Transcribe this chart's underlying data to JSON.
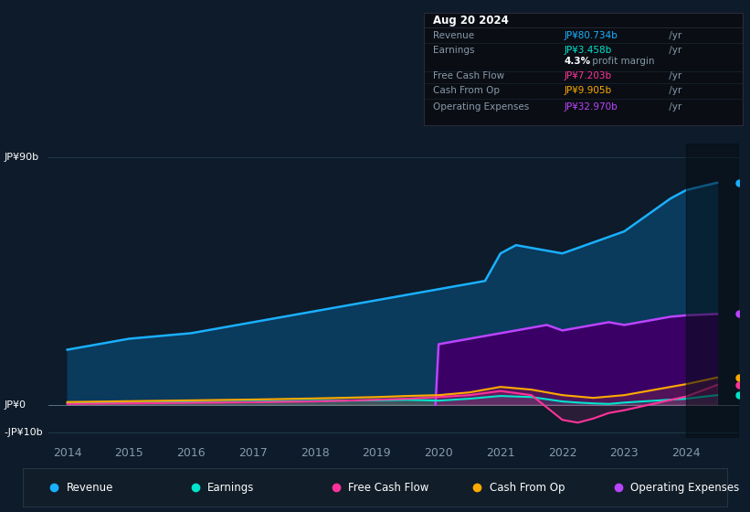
{
  "background_color": "#0d1b2a",
  "plot_bg_color": "#0d1b2a",
  "ylim": [
    -12,
    95
  ],
  "xlim": [
    2013.7,
    2024.85
  ],
  "xticks": [
    2014,
    2015,
    2016,
    2017,
    2018,
    2019,
    2020,
    2021,
    2022,
    2023,
    2024
  ],
  "revenue_color": "#1ab0ff",
  "revenue_fill_color": "#0a3a5c",
  "earnings_color": "#00e5cc",
  "free_cash_flow_color": "#ff3399",
  "cash_from_op_color": "#ffaa00",
  "operating_expenses_color": "#bb44ff",
  "operating_expenses_fill_color": "#3a0066",
  "grid_color": "#1e3a4a",
  "text_color": "#8899aa",
  "info_box_bg": "#0a0e14",
  "info_box_border": "#2a2a3a",
  "revenue_data": {
    "years": [
      2014.0,
      2014.25,
      2014.5,
      2014.75,
      2015.0,
      2015.25,
      2015.5,
      2015.75,
      2016.0,
      2016.25,
      2016.5,
      2016.75,
      2017.0,
      2017.25,
      2017.5,
      2017.75,
      2018.0,
      2018.25,
      2018.5,
      2018.75,
      2019.0,
      2019.25,
      2019.5,
      2019.75,
      2020.0,
      2020.25,
      2020.5,
      2020.75,
      2021.0,
      2021.25,
      2021.5,
      2021.75,
      2022.0,
      2022.25,
      2022.5,
      2022.75,
      2023.0,
      2023.25,
      2023.5,
      2023.75,
      2024.0,
      2024.5
    ],
    "values": [
      20,
      21,
      22,
      23,
      24,
      24.5,
      25,
      25.5,
      26,
      27,
      28,
      29,
      30,
      31,
      32,
      33,
      34,
      35,
      36,
      37,
      38,
      39,
      40,
      41,
      42,
      43,
      44,
      45,
      55,
      58,
      57,
      56,
      55,
      57,
      59,
      61,
      63,
      67,
      71,
      75,
      78,
      80.7
    ]
  },
  "earnings_data": {
    "years": [
      2014,
      2015,
      2016,
      2017,
      2018,
      2019,
      2019.5,
      2020,
      2020.5,
      2021,
      2021.5,
      2022,
      2022.25,
      2022.5,
      2022.75,
      2023,
      2023.5,
      2024,
      2024.5
    ],
    "values": [
      0.5,
      0.7,
      0.9,
      1.1,
      1.4,
      1.6,
      1.8,
      1.5,
      2.2,
      3.2,
      2.8,
      1.2,
      0.8,
      0.5,
      0.3,
      0.8,
      1.5,
      2.2,
      3.5
    ]
  },
  "free_cash_flow_data": {
    "years": [
      2014,
      2015,
      2016,
      2017,
      2018,
      2019,
      2019.5,
      2020,
      2020.5,
      2021,
      2021.5,
      2022,
      2022.25,
      2022.5,
      2022.75,
      2023,
      2023.5,
      2024,
      2024.5
    ],
    "values": [
      0.3,
      0.5,
      0.7,
      0.9,
      1.2,
      1.8,
      2.2,
      2.8,
      3.5,
      5.0,
      3.5,
      -5.5,
      -6.5,
      -5.0,
      -3.0,
      -2.0,
      0.5,
      3.0,
      7.2
    ]
  },
  "cash_from_op_data": {
    "years": [
      2014,
      2015,
      2016,
      2017,
      2018,
      2019,
      2019.5,
      2020,
      2020.5,
      2021,
      2021.5,
      2022,
      2022.5,
      2023,
      2023.5,
      2024,
      2024.5
    ],
    "values": [
      1.0,
      1.3,
      1.6,
      1.9,
      2.3,
      2.8,
      3.2,
      3.5,
      4.5,
      6.5,
      5.5,
      3.5,
      2.5,
      3.5,
      5.5,
      7.5,
      9.9
    ]
  },
  "operating_expenses_data": {
    "years": [
      2019.95,
      2020.0,
      2020.25,
      2020.5,
      2020.75,
      2021.0,
      2021.25,
      2021.5,
      2021.75,
      2022.0,
      2022.25,
      2022.5,
      2022.75,
      2023.0,
      2023.25,
      2023.5,
      2023.75,
      2024.0,
      2024.5
    ],
    "values": [
      0,
      22,
      23,
      24,
      25,
      26,
      27,
      28,
      29,
      27,
      28,
      29,
      30,
      29,
      30,
      31,
      32,
      32.5,
      33.0
    ]
  },
  "info_box": {
    "date": "Aug 20 2024",
    "rows": [
      {
        "label": "Revenue",
        "value": "JP¥80.734b",
        "unit": " /yr",
        "value_color": "#1ab0ff",
        "is_margin": false
      },
      {
        "label": "Earnings",
        "value": "JP¥3.458b",
        "unit": " /yr",
        "value_color": "#00e5cc",
        "is_margin": false
      },
      {
        "label": "",
        "value": "4.3%",
        "unit": " profit margin",
        "value_color": "white",
        "is_margin": true
      },
      {
        "label": "Free Cash Flow",
        "value": "JP¥7.203b",
        "unit": " /yr",
        "value_color": "#ff3399",
        "is_margin": false
      },
      {
        "label": "Cash From Op",
        "value": "JP¥9.905b",
        "unit": " /yr",
        "value_color": "#ffaa00",
        "is_margin": false
      },
      {
        "label": "Operating Expenses",
        "value": "JP¥32.970b",
        "unit": " /yr",
        "value_color": "#bb44ff",
        "is_margin": false
      }
    ]
  },
  "legend": [
    {
      "label": "Revenue",
      "color": "#1ab0ff"
    },
    {
      "label": "Earnings",
      "color": "#00e5cc"
    },
    {
      "label": "Free Cash Flow",
      "color": "#ff3399"
    },
    {
      "label": "Cash From Op",
      "color": "#ffaa00"
    },
    {
      "label": "Operating Expenses",
      "color": "#bb44ff"
    }
  ]
}
